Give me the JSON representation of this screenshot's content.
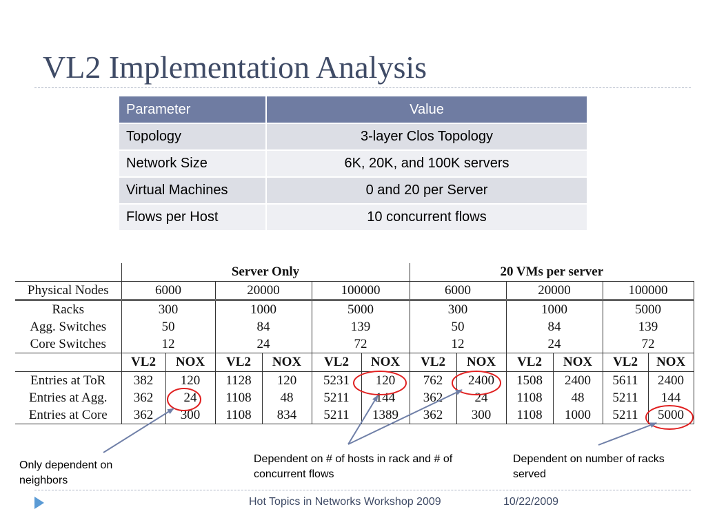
{
  "slide": {
    "title": "VL2 Implementation Analysis",
    "footer_event": "Hot Topics in Networks Workshop 2009",
    "footer_date": "10/22/2009",
    "accent_color": "#6f7ca2",
    "title_color": "#3f4b66",
    "circle_color": "#e02020",
    "arrow_color": "#7080a8"
  },
  "param_table": {
    "headers": [
      "Parameter",
      "Value"
    ],
    "rows": [
      [
        "Topology",
        "3-layer Clos Topology"
      ],
      [
        "Network Size",
        "6K, 20K, and 100K servers"
      ],
      [
        "Virtual Machines",
        "0 and 20 per Server"
      ],
      [
        "Flows per Host",
        "10 concurrent flows"
      ]
    ]
  },
  "vl2_table": {
    "group_headers": [
      "Server Only",
      "20 VMs per server"
    ],
    "physical_nodes_label": "Physical Nodes",
    "physical_nodes": [
      "6000",
      "20000",
      "100000",
      "6000",
      "20000",
      "100000"
    ],
    "infra_rows": [
      {
        "label": "Racks",
        "values": [
          "300",
          "1000",
          "5000",
          "300",
          "1000",
          "5000"
        ]
      },
      {
        "label": "Agg. Switches",
        "values": [
          "50",
          "84",
          "139",
          "50",
          "84",
          "139"
        ]
      },
      {
        "label": "Core Switches",
        "values": [
          "12",
          "24",
          "72",
          "12",
          "24",
          "72"
        ]
      }
    ],
    "sub_headers": [
      "VL2",
      "NOX",
      "VL2",
      "NOX",
      "VL2",
      "NOX",
      "VL2",
      "NOX",
      "VL2",
      "NOX",
      "VL2",
      "NOX"
    ],
    "entry_rows": [
      {
        "label": "Entries at ToR",
        "values": [
          "382",
          "120",
          "1128",
          "120",
          "5231",
          "120",
          "762",
          "2400",
          "1508",
          "2400",
          "5611",
          "2400"
        ]
      },
      {
        "label": "Entries at Agg.",
        "values": [
          "362",
          "24",
          "1108",
          "48",
          "5211",
          "144",
          "362",
          "24",
          "1108",
          "48",
          "5211",
          "144"
        ]
      },
      {
        "label": "Entries at Core",
        "values": [
          "362",
          "300",
          "1108",
          "834",
          "5211",
          "1389",
          "362",
          "300",
          "1108",
          "1000",
          "5211",
          "5000"
        ]
      }
    ]
  },
  "annotations": [
    {
      "text": "Only dependent on neighbors"
    },
    {
      "text": "Dependent on # of hosts in rack and # of concurrent flows"
    },
    {
      "text": "Dependent on number of racks served"
    }
  ]
}
